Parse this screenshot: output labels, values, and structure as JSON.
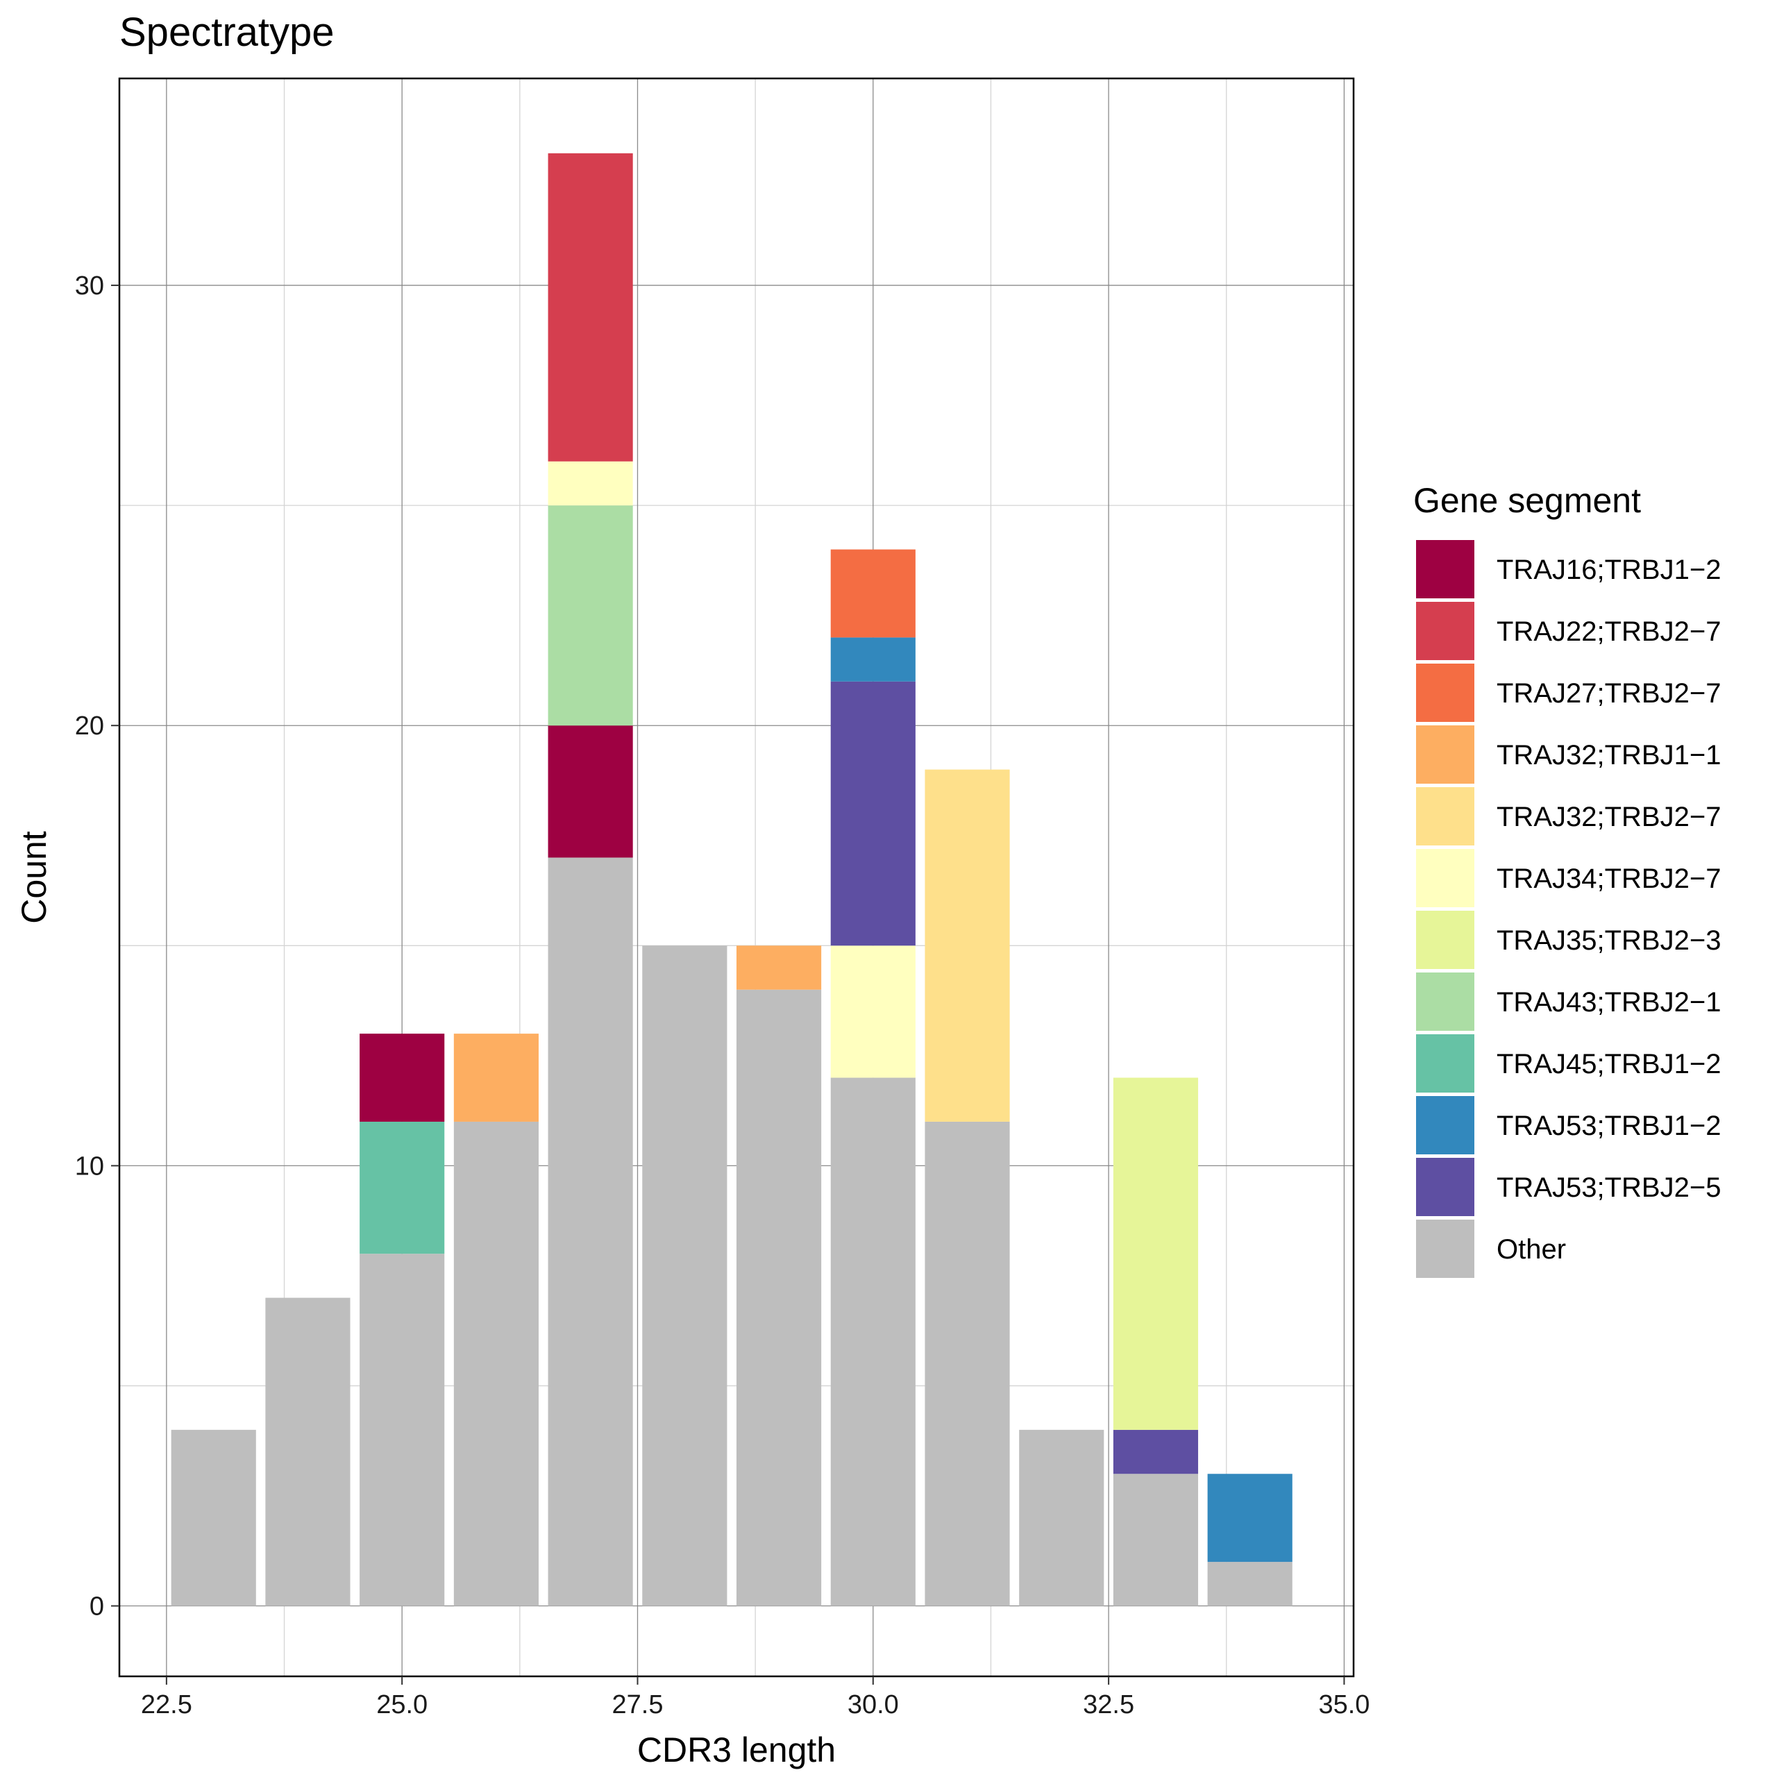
{
  "chart_data": {
    "type": "bar",
    "stacked": true,
    "title": "Spectratype",
    "xlabel": "CDR3 length",
    "ylabel": "Count",
    "xlim": [
      22,
      35.1
    ],
    "ylim": [
      -1.6,
      34.7
    ],
    "x_ticks": [
      "22.5",
      "25.0",
      "27.5",
      "30.0",
      "32.5",
      "35.0"
    ],
    "y_ticks": [
      "0",
      "10",
      "20",
      "30"
    ],
    "grid": true,
    "legend_position": "right",
    "legend_title": "Gene segment",
    "categories": [
      23,
      24,
      25,
      26,
      27,
      28,
      29,
      30,
      31,
      32,
      33,
      34
    ],
    "series": [
      {
        "name": "Other",
        "color": "#bebebe",
        "values": [
          4,
          7,
          8,
          11,
          17,
          15,
          14,
          12,
          11,
          4,
          3,
          1
        ]
      },
      {
        "name": "TRAJ45;TRBJ1-2",
        "color": "#66c2a5",
        "values": [
          0,
          0,
          3,
          0,
          0,
          0,
          0,
          0,
          0,
          0,
          0,
          0
        ]
      },
      {
        "name": "TRAJ16;TRBJ1-2",
        "color": "#9e0142",
        "values": [
          0,
          0,
          2,
          0,
          3,
          0,
          0,
          0,
          0,
          0,
          0,
          0
        ]
      },
      {
        "name": "TRAJ32;TRBJ1-1",
        "color": "#fdae61",
        "values": [
          0,
          0,
          0,
          2,
          0,
          0,
          1,
          0,
          0,
          0,
          0,
          0
        ]
      },
      {
        "name": "TRAJ43;TRBJ2-1",
        "color": "#abdda4",
        "values": [
          0,
          0,
          0,
          0,
          5,
          0,
          0,
          0,
          0,
          0,
          0,
          0
        ]
      },
      {
        "name": "TRAJ34;TRBJ2-7",
        "color": "#ffffbf",
        "values": [
          0,
          0,
          0,
          0,
          1,
          0,
          0,
          3,
          0,
          0,
          0,
          0
        ]
      },
      {
        "name": "TRAJ22;TRBJ2-7",
        "color": "#d53e4f",
        "values": [
          0,
          0,
          0,
          0,
          7,
          0,
          0,
          0,
          0,
          0,
          0,
          0
        ]
      },
      {
        "name": "TRAJ53;TRBJ2-5",
        "color": "#5e4fa2",
        "values": [
          0,
          0,
          0,
          0,
          0,
          0,
          0,
          6,
          0,
          0,
          1,
          0
        ]
      },
      {
        "name": "TRAJ53;TRBJ1-2",
        "color": "#3288bd",
        "values": [
          0,
          0,
          0,
          0,
          0,
          0,
          0,
          1,
          0,
          0,
          0,
          2
        ]
      },
      {
        "name": "TRAJ27;TRBJ2-7",
        "color": "#f46d43",
        "values": [
          0,
          0,
          0,
          0,
          0,
          0,
          0,
          2,
          0,
          0,
          0,
          0
        ]
      },
      {
        "name": "TRAJ32;TRBJ2-7",
        "color": "#fee08b",
        "values": [
          0,
          0,
          0,
          0,
          0,
          0,
          0,
          0,
          8,
          0,
          0,
          0
        ]
      },
      {
        "name": "TRAJ35;TRBJ2-3",
        "color": "#e6f598",
        "values": [
          0,
          0,
          0,
          0,
          0,
          0,
          0,
          0,
          0,
          0,
          8,
          0
        ]
      }
    ],
    "legend_order": [
      "TRAJ16;TRBJ1-2",
      "TRAJ22;TRBJ2-7",
      "TRAJ27;TRBJ2-7",
      "TRAJ32;TRBJ1-1",
      "TRAJ32;TRBJ2-7",
      "TRAJ34;TRBJ2-7",
      "TRAJ35;TRBJ2-3",
      "TRAJ43;TRBJ2-1",
      "TRAJ45;TRBJ1-2",
      "TRAJ53;TRBJ1-2",
      "TRAJ53;TRBJ2-5",
      "Other"
    ],
    "legend_labels": [
      "TRAJ16;TRBJ1−2",
      "TRAJ22;TRBJ2−7",
      "TRAJ27;TRBJ2−7",
      "TRAJ32;TRBJ1−1",
      "TRAJ32;TRBJ2−7",
      "TRAJ34;TRBJ2−7",
      "TRAJ35;TRBJ2−3",
      "TRAJ43;TRBJ2−1",
      "TRAJ45;TRBJ1−2",
      "TRAJ53;TRBJ1−2",
      "TRAJ53;TRBJ2−5",
      "Other"
    ]
  }
}
